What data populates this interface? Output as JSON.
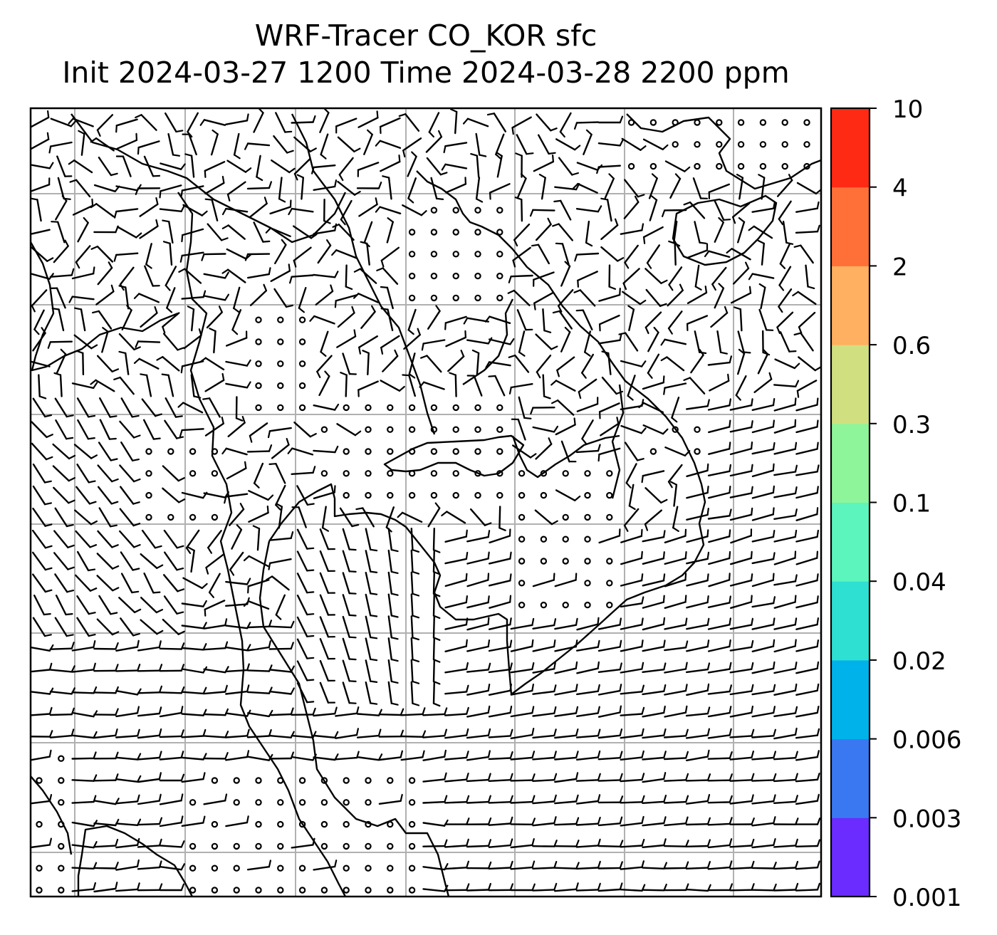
{
  "title": {
    "line1": "WRF-Tracer CO_KOR sfc",
    "line2": "Init 2024-03-27 1200 Time 2024-03-28 2200 ppm"
  },
  "colorbar": {
    "ticks": [
      "0.001",
      "0.003",
      "0.006",
      "0.02",
      "0.04",
      "0.1",
      "0.3",
      "0.6",
      "2",
      "4",
      "10"
    ],
    "colors": [
      "#6a2cff",
      "#3a78f2",
      "#00b2ea",
      "#2ee0d2",
      "#5cf5be",
      "#8ef59a",
      "#d0e080",
      "#ffb060",
      "#ff7038",
      "#ff2a14"
    ]
  },
  "map": {
    "gridlines": true,
    "gridline_color": "#b0b0b0",
    "coastline_color": "#000000",
    "wind_symbol": "wind-barbs"
  }
}
